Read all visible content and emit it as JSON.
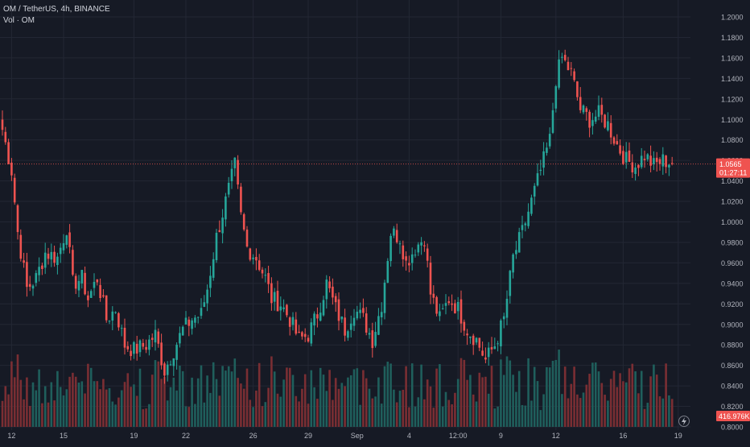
{
  "header": {
    "symbol": "OM / TetherUS",
    "interval": "4h",
    "exchange": "BINANCE",
    "volume_label": "Vol · OM"
  },
  "colors": {
    "background": "#161a25",
    "grid": "#232734",
    "up": "#26a69a",
    "down": "#ef5350",
    "text": "#b2b5be",
    "price_line": "#ef5350",
    "volume_up": "#1f5f5c",
    "volume_down": "#7a2e33"
  },
  "chart_data": {
    "type": "candlestick",
    "symbol": "OM / TetherUS",
    "interval": "4h",
    "exchange": "BINANCE",
    "ylim": [
      0.8,
      1.2
    ],
    "y_ticks": [
      "0.8000",
      "0.8200",
      "0.8400",
      "0.8600",
      "0.8800",
      "0.9000",
      "0.9200",
      "0.9400",
      "0.9600",
      "0.9800",
      "1.0000",
      "1.0200",
      "1.0400",
      "1.0600",
      "1.0800",
      "1.1000",
      "1.1200",
      "1.1400",
      "1.1600",
      "1.1800",
      "1.2000"
    ],
    "x_ticks": [
      {
        "label": "12",
        "bar": 3
      },
      {
        "label": "15",
        "bar": 20
      },
      {
        "label": "19",
        "bar": 43
      },
      {
        "label": "22",
        "bar": 60
      },
      {
        "label": "26",
        "bar": 82
      },
      {
        "label": "29",
        "bar": 100
      },
      {
        "label": "Sep",
        "bar": 116
      },
      {
        "label": "4",
        "bar": 133
      },
      {
        "label": "12:00",
        "bar": 149
      },
      {
        "label": "9",
        "bar": 163
      },
      {
        "label": "12",
        "bar": 181
      },
      {
        "label": "16",
        "bar": 203
      },
      {
        "label": "19",
        "bar": 221
      }
    ],
    "current_price": {
      "value": 1.0565,
      "label": "1.0565",
      "countdown": "01:27:11"
    },
    "current_volume": {
      "label": "416.976K"
    },
    "volume_max": 1.0,
    "waypoints": [
      [
        0,
        1.09
      ],
      [
        3,
        1.05
      ],
      [
        5,
        0.99
      ],
      [
        8,
        0.935
      ],
      [
        11,
        0.945
      ],
      [
        14,
        0.97
      ],
      [
        18,
        0.965
      ],
      [
        21,
        0.995
      ],
      [
        23,
        0.94
      ],
      [
        26,
        0.945
      ],
      [
        28,
        0.925
      ],
      [
        31,
        0.945
      ],
      [
        34,
        0.905
      ],
      [
        37,
        0.915
      ],
      [
        40,
        0.88
      ],
      [
        43,
        0.875
      ],
      [
        47,
        0.88
      ],
      [
        50,
        0.89
      ],
      [
        53,
        0.855
      ],
      [
        56,
        0.875
      ],
      [
        59,
        0.895
      ],
      [
        62,
        0.905
      ],
      [
        65,
        0.91
      ],
      [
        67,
        0.935
      ],
      [
        70,
        0.985
      ],
      [
        73,
        1.02
      ],
      [
        76,
        1.055
      ],
      [
        78,
        1.005
      ],
      [
        80,
        0.975
      ],
      [
        83,
        0.965
      ],
      [
        86,
        0.945
      ],
      [
        88,
        0.925
      ],
      [
        91,
        0.92
      ],
      [
        94,
        0.905
      ],
      [
        97,
        0.885
      ],
      [
        100,
        0.89
      ],
      [
        103,
        0.91
      ],
      [
        106,
        0.94
      ],
      [
        109,
        0.915
      ],
      [
        112,
        0.895
      ],
      [
        115,
        0.915
      ],
      [
        118,
        0.905
      ],
      [
        121,
        0.885
      ],
      [
        124,
        0.92
      ],
      [
        127,
        0.99
      ],
      [
        130,
        0.985
      ],
      [
        132,
        0.96
      ],
      [
        135,
        0.975
      ],
      [
        138,
        0.985
      ],
      [
        140,
        0.93
      ],
      [
        143,
        0.905
      ],
      [
        146,
        0.925
      ],
      [
        149,
        0.915
      ],
      [
        152,
        0.895
      ],
      [
        155,
        0.885
      ],
      [
        158,
        0.865
      ],
      [
        161,
        0.88
      ],
      [
        164,
        0.905
      ],
      [
        167,
        0.965
      ],
      [
        170,
        0.99
      ],
      [
        173,
        1.02
      ],
      [
        176,
        1.05
      ],
      [
        179,
        1.08
      ],
      [
        181,
        1.14
      ],
      [
        183,
        1.16
      ],
      [
        186,
        1.145
      ],
      [
        189,
        1.11
      ],
      [
        192,
        1.1
      ],
      [
        195,
        1.105
      ],
      [
        198,
        1.095
      ],
      [
        201,
        1.075
      ],
      [
        204,
        1.06
      ],
      [
        207,
        1.055
      ],
      [
        210,
        1.065
      ],
      [
        213,
        1.055
      ],
      [
        216,
        1.06
      ],
      [
        219,
        1.058
      ]
    ]
  }
}
